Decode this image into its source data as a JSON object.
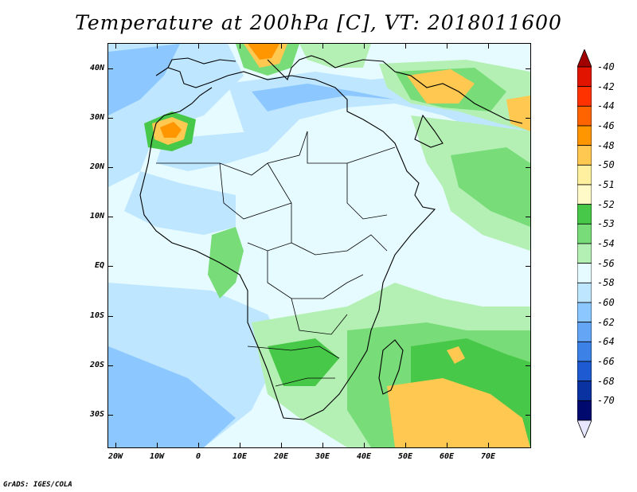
{
  "title": "Temperature at 200hPa [C], VT: 2018011600",
  "footer": "GrADS: IGES/COLA",
  "map": {
    "region": "Africa, Europe and Middle East",
    "variable": "Temperature",
    "level": "200hPa",
    "units": "C",
    "valid_time": "2018011600",
    "lon_range": [
      -22,
      80
    ],
    "lat_range": [
      -37,
      45
    ],
    "lat_labels": [
      "40N",
      "30N",
      "20N",
      "10N",
      "EQ",
      "10S",
      "20S",
      "30S"
    ],
    "lat_values": [
      40,
      30,
      20,
      10,
      0,
      -10,
      -20,
      -30
    ],
    "lon_labels": [
      "20W",
      "10W",
      "0",
      "10E",
      "20E",
      "30E",
      "40E",
      "50E",
      "60E",
      "70E"
    ],
    "lon_values": [
      -20,
      -10,
      0,
      10,
      20,
      30,
      40,
      50,
      60,
      70
    ]
  },
  "colorbar": {
    "labels": [
      "-40",
      "-42",
      "-44",
      "-46",
      "-48",
      "-50",
      "-51",
      "-52",
      "-53",
      "-54",
      "-56",
      "-58",
      "-60",
      "-62",
      "-64",
      "-66",
      "-68",
      "-70"
    ],
    "colors": [
      "#a00000",
      "#e11400",
      "#ff3200",
      "#ff6400",
      "#ff9600",
      "#ffc850",
      "#fff0a0",
      "#fffac8",
      "#48c848",
      "#78dc78",
      "#b4f0b4",
      "#e6fbff",
      "#bee6ff",
      "#8cc8ff",
      "#64a5f5",
      "#3c82e6",
      "#1e5ad2",
      "#0a32a0",
      "#000a6e",
      "#e6e6ff"
    ],
    "top_arrow_color": "#a00000",
    "bottom_arrow_color": "#e6e6ff"
  }
}
